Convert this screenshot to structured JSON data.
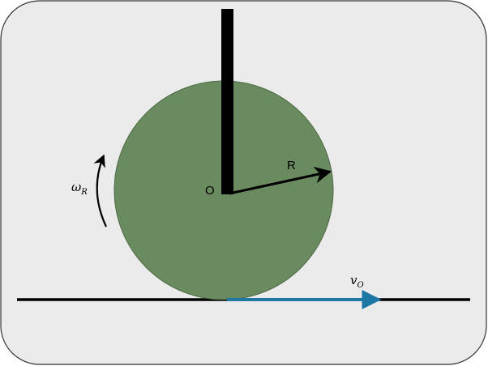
{
  "labels": {
    "center": "O",
    "radius": "R",
    "angular_velocity": "ω",
    "angular_velocity_sub": "R",
    "velocity": "v",
    "velocity_sub": "O"
  },
  "colors": {
    "background": "#ebebeb",
    "panel_border": "#333333",
    "wheel_fill": "#6a8a5f",
    "wheel_stroke": "#4d6a45",
    "rod": "#000000",
    "ground": "#000000",
    "radius_arrow": "#000000",
    "omega_arrow": "#000000",
    "velocity_arrow": "#1f78a4"
  }
}
